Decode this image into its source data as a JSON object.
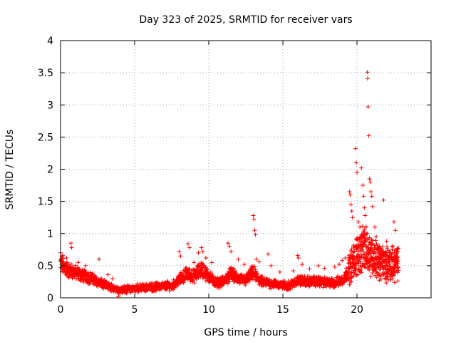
{
  "chart_data": {
    "type": "scatter",
    "title": "Day 323 of 2025, SRMTID for receiver vars",
    "xlabel": "GPS time / hours",
    "ylabel": "SRMTID / TECUs",
    "xlim": [
      0,
      25
    ],
    "ylim": [
      0,
      4
    ],
    "xticks": [
      0,
      5,
      10,
      15,
      20
    ],
    "xtick_labels": [
      "0",
      "5",
      "10",
      "15",
      "20"
    ],
    "yticks": [
      0,
      0.5,
      1,
      1.5,
      2,
      2.5,
      3,
      3.5,
      4
    ],
    "ytick_labels": [
      "0",
      "0.5",
      "1",
      "1.5",
      "2",
      "2.5",
      "3",
      "3.5",
      "4"
    ],
    "grid": true,
    "marker": "+",
    "series": [
      {
        "name": "SRMTID",
        "color": "#ff0000",
        "baseline": [
          [
            0.0,
            0.52
          ],
          [
            0.5,
            0.42
          ],
          [
            1.0,
            0.38
          ],
          [
            1.5,
            0.33
          ],
          [
            2.0,
            0.3
          ],
          [
            2.5,
            0.24
          ],
          [
            3.0,
            0.18
          ],
          [
            3.5,
            0.14
          ],
          [
            4.0,
            0.11
          ],
          [
            4.5,
            0.12
          ],
          [
            5.0,
            0.13
          ],
          [
            5.5,
            0.14
          ],
          [
            6.0,
            0.15
          ],
          [
            6.5,
            0.16
          ],
          [
            7.0,
            0.17
          ],
          [
            7.5,
            0.17
          ],
          [
            8.0,
            0.26
          ],
          [
            8.5,
            0.36
          ],
          [
            9.0,
            0.32
          ],
          [
            9.5,
            0.44
          ],
          [
            10.0,
            0.32
          ],
          [
            10.5,
            0.22
          ],
          [
            11.0,
            0.24
          ],
          [
            11.5,
            0.36
          ],
          [
            12.0,
            0.28
          ],
          [
            12.5,
            0.26
          ],
          [
            13.0,
            0.38
          ],
          [
            13.5,
            0.24
          ],
          [
            14.0,
            0.22
          ],
          [
            14.5,
            0.2
          ],
          [
            15.0,
            0.18
          ],
          [
            15.5,
            0.18
          ],
          [
            16.0,
            0.26
          ],
          [
            16.5,
            0.24
          ],
          [
            17.0,
            0.24
          ],
          [
            17.5,
            0.24
          ],
          [
            18.0,
            0.22
          ],
          [
            18.5,
            0.22
          ],
          [
            19.0,
            0.26
          ],
          [
            19.5,
            0.42
          ],
          [
            20.0,
            0.62
          ],
          [
            20.5,
            0.72
          ],
          [
            21.0,
            0.62
          ],
          [
            21.5,
            0.52
          ],
          [
            22.0,
            0.48
          ],
          [
            22.5,
            0.48
          ],
          [
            22.8,
            0.5
          ]
        ],
        "spikes": [
          [
            0.0,
            0.7
          ],
          [
            0.15,
            0.66
          ],
          [
            0.4,
            0.62
          ],
          [
            0.7,
            0.85
          ],
          [
            0.75,
            0.78
          ],
          [
            1.2,
            0.55
          ],
          [
            1.7,
            0.5
          ],
          [
            2.6,
            0.6
          ],
          [
            3.2,
            0.36
          ],
          [
            3.5,
            0.3
          ],
          [
            3.9,
            0.02
          ],
          [
            4.3,
            0.18
          ],
          [
            5.2,
            0.22
          ],
          [
            6.5,
            0.24
          ],
          [
            7.2,
            0.26
          ],
          [
            8.0,
            0.72
          ],
          [
            8.1,
            0.65
          ],
          [
            8.6,
            0.84
          ],
          [
            8.7,
            0.78
          ],
          [
            9.0,
            0.55
          ],
          [
            9.3,
            0.7
          ],
          [
            9.5,
            0.78
          ],
          [
            9.6,
            0.72
          ],
          [
            9.8,
            0.62
          ],
          [
            10.2,
            0.55
          ],
          [
            11.3,
            0.85
          ],
          [
            11.4,
            0.8
          ],
          [
            11.5,
            0.72
          ],
          [
            12.0,
            0.6
          ],
          [
            12.4,
            0.52
          ],
          [
            13.0,
            1.28
          ],
          [
            13.05,
            1.22
          ],
          [
            13.1,
            1.05
          ],
          [
            13.15,
            0.98
          ],
          [
            13.2,
            0.6
          ],
          [
            13.4,
            0.56
          ],
          [
            14.0,
            0.68
          ],
          [
            14.2,
            0.5
          ],
          [
            14.8,
            0.4
          ],
          [
            15.7,
            0.42
          ],
          [
            16.0,
            0.66
          ],
          [
            16.05,
            0.62
          ],
          [
            16.3,
            0.52
          ],
          [
            16.8,
            0.45
          ],
          [
            17.4,
            0.5
          ],
          [
            17.8,
            0.46
          ],
          [
            18.5,
            0.48
          ],
          [
            18.8,
            0.52
          ],
          [
            19.0,
            0.58
          ],
          [
            19.2,
            0.62
          ],
          [
            19.5,
            1.65
          ],
          [
            19.55,
            1.6
          ],
          [
            19.6,
            1.45
          ],
          [
            19.65,
            1.35
          ],
          [
            19.7,
            1.25
          ],
          [
            19.9,
            2.32
          ],
          [
            19.95,
            2.1
          ],
          [
            20.0,
            1.95
          ],
          [
            20.1,
            1.18
          ],
          [
            20.2,
            1.1
          ],
          [
            20.3,
            2.02
          ],
          [
            20.4,
            1.75
          ],
          [
            20.45,
            1.58
          ],
          [
            20.5,
            1.4
          ],
          [
            20.55,
            1.28
          ],
          [
            20.6,
            1.1
          ],
          [
            20.7,
            3.51
          ],
          [
            20.72,
            3.41
          ],
          [
            20.75,
            2.97
          ],
          [
            20.8,
            2.52
          ],
          [
            20.85,
            1.85
          ],
          [
            20.9,
            1.8
          ],
          [
            20.95,
            1.65
          ],
          [
            21.0,
            1.58
          ],
          [
            21.05,
            1.42
          ],
          [
            21.2,
            1.1
          ],
          [
            21.3,
            0.95
          ],
          [
            21.5,
            0.8
          ],
          [
            21.7,
            0.72
          ],
          [
            21.8,
            1.52
          ],
          [
            22.0,
            0.88
          ],
          [
            22.2,
            0.7
          ],
          [
            22.5,
            1.18
          ],
          [
            22.6,
            1.05
          ],
          [
            22.7,
            0.75
          ]
        ]
      }
    ]
  }
}
